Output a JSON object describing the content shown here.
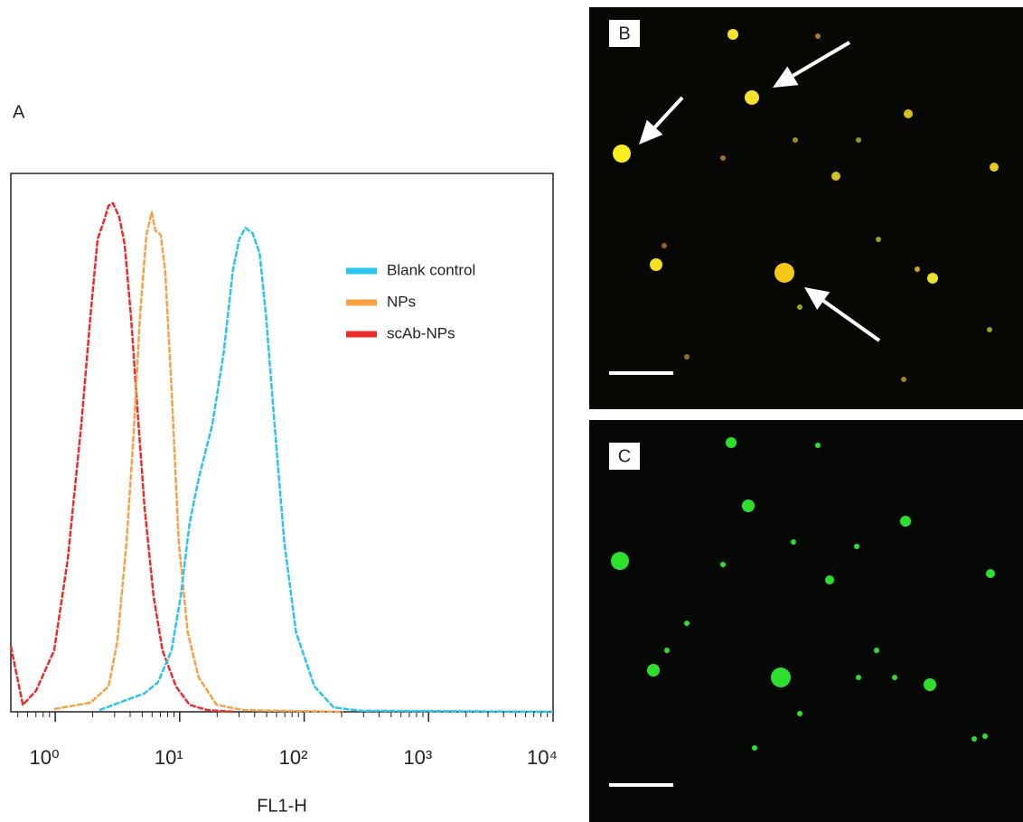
{
  "chart_data": {
    "type": "line",
    "panel_label": "A",
    "xlabel": "FL1-H",
    "xscale": "log",
    "xlim": [
      0.44,
      10000
    ],
    "ylim": [
      0,
      100
    ],
    "xticks": [
      {
        "value": 1,
        "label": "10⁰"
      },
      {
        "value": 10,
        "label": "10¹"
      },
      {
        "value": 100,
        "label": "10²"
      },
      {
        "value": 1000,
        "label": "10³"
      },
      {
        "value": 10000,
        "label": "10⁴"
      }
    ],
    "legend": "upper right",
    "series": [
      {
        "name": "Blank control",
        "color": "#29c5f0",
        "x": [
          2.26,
          3.74,
          5.21,
          6.7,
          8.6,
          10.2,
          12.0,
          14.2,
          18.3,
          22.6,
          26.7,
          30.1,
          33.8,
          38.5,
          43.9,
          49.4,
          58.6,
          69.3,
          86.0,
          121,
          173,
          285,
          10000
        ],
        "values": [
          0.3,
          2.2,
          3.4,
          5.5,
          11.4,
          21.5,
          34.9,
          43.3,
          53.4,
          66.8,
          81.9,
          87.8,
          89.9,
          88.9,
          85.2,
          73.5,
          51.7,
          31.5,
          14.8,
          4.7,
          0.8,
          0.2,
          0
        ]
      },
      {
        "name": "NPs",
        "color": "#f7a145",
        "x": [
          0.98,
          1.92,
          2.68,
          3.16,
          3.74,
          4.27,
          4.8,
          5.4,
          5.96,
          6.37,
          7.04,
          7.65,
          8.6,
          9.83,
          11.6,
          14.2,
          19.8,
          32.7,
          206
        ],
        "values": [
          0.5,
          1.7,
          4.7,
          13.1,
          31.5,
          51.7,
          73.5,
          88.6,
          92.8,
          89.4,
          88.6,
          81.9,
          60.1,
          31.5,
          14.8,
          6.4,
          1.3,
          0.3,
          0
        ]
      },
      {
        "name": "scAb-NPs",
        "color": "#ee2b2b",
        "x": [
          0.44,
          0.55,
          0.7,
          0.98,
          1.26,
          1.62,
          1.92,
          2.19,
          2.46,
          2.68,
          2.91,
          3.27,
          3.61,
          4.06,
          4.56,
          5.21,
          6.17,
          7.28,
          9.35,
          12.0,
          16.8,
          27.7
        ],
        "values": [
          12.2,
          1.3,
          3.9,
          11.4,
          28.2,
          53.4,
          73.5,
          87.8,
          91.1,
          94.0,
          94.5,
          91.9,
          86.9,
          73.5,
          56.7,
          38.3,
          21.5,
          11.4,
          4.7,
          1.3,
          0.3,
          0
        ]
      }
    ]
  },
  "panels": [
    {
      "label": "B"
    },
    {
      "label": "C"
    }
  ]
}
